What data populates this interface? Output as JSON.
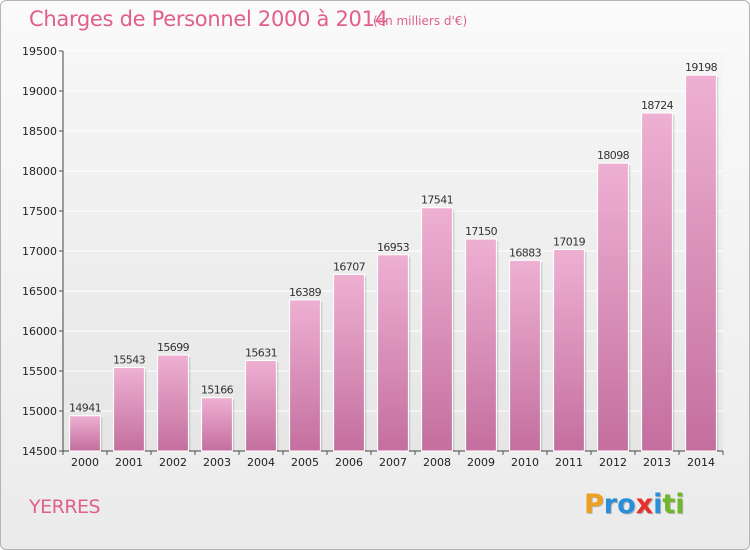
{
  "header": {
    "title": "Charges de Personnel 2000 à 2014",
    "subtitle": "(en milliers d'€)"
  },
  "footer": {
    "place": "YERRES",
    "logo": {
      "letters": [
        "P",
        "r",
        "o",
        "x",
        "i",
        "t",
        "i"
      ],
      "colors": [
        "#f0a020",
        "#2a8fd8",
        "#2a8fd8",
        "#e8302a",
        "#2a8fd8",
        "#70b82a",
        "#70b82a"
      ]
    }
  },
  "colors": {
    "title": "#e0608a",
    "bar_top": "#eeb0d2",
    "bar_bottom": "#c46f9e"
  },
  "chart_data": {
    "type": "bar",
    "categories": [
      "2000",
      "2001",
      "2002",
      "2003",
      "2004",
      "2005",
      "2006",
      "2007",
      "2008",
      "2009",
      "2010",
      "2011",
      "2012",
      "2013",
      "2014"
    ],
    "values": [
      14941,
      15543,
      15699,
      15166,
      15631,
      16389,
      16707,
      16953,
      17541,
      17150,
      16883,
      17019,
      18098,
      18724,
      19198
    ],
    "title": "Charges de Personnel 2000 à 2014",
    "subtitle": "(en milliers d'€)",
    "xlabel": "",
    "ylabel": "",
    "ylim": [
      14500,
      19500
    ],
    "yticks": [
      14500,
      15000,
      15500,
      16000,
      16500,
      17000,
      17500,
      18000,
      18500,
      19000,
      19500
    ],
    "grid": true,
    "data_labels": true
  }
}
